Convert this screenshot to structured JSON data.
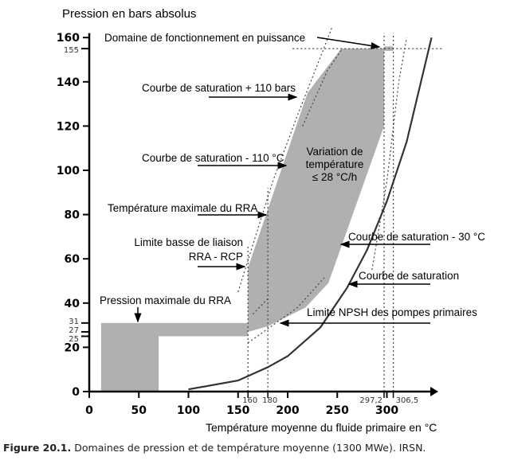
{
  "chart_data": {
    "type": "area",
    "ylabel": "Pression en bars absolus",
    "xlabel": "Température moyenne du fluide primaire en °C",
    "xlim": [
      0,
      340
    ],
    "ylim": [
      0,
      165
    ],
    "x_ticks": [
      0,
      50,
      100,
      150,
      200,
      250,
      300
    ],
    "y_ticks": [
      0,
      20,
      40,
      60,
      80,
      100,
      120,
      140,
      160
    ],
    "x_special_ticks": [
      "160",
      "180",
      "297,2",
      "306,5"
    ],
    "y_special_ticks": [
      "25",
      "27",
      "31",
      "155"
    ],
    "regions": [
      {
        "name": "Variation de température ≤ 28 °C/h",
        "points": [
          [
            160,
            27
          ],
          [
            160,
            56
          ],
          [
            220,
            135
          ],
          [
            254,
            155
          ],
          [
            297.2,
            155
          ],
          [
            297.2,
            120
          ],
          [
            241,
            49
          ],
          [
            218,
            38
          ],
          [
            180,
            29.5
          ]
        ]
      },
      {
        "name": "Pression maximale du RRA",
        "points": [
          [
            12,
            0
          ],
          [
            12,
            31
          ],
          [
            160,
            31
          ],
          [
            160,
            25
          ],
          [
            70,
            25
          ],
          [
            70,
            0
          ]
        ]
      },
      {
        "name": "Domaine de fonctionnement en puissance",
        "points": [
          [
            297.2,
            154
          ],
          [
            306.5,
            154
          ],
          [
            306.5,
            156
          ],
          [
            297.2,
            156
          ]
        ]
      }
    ],
    "saturation_curve": [
      [
        100,
        1
      ],
      [
        150,
        5
      ],
      [
        180,
        11
      ],
      [
        200,
        16
      ],
      [
        233,
        29
      ],
      [
        260,
        47
      ],
      [
        280,
        64
      ],
      [
        300,
        86
      ],
      [
        320,
        113
      ],
      [
        345,
        160
      ]
    ],
    "reference_lines": {
      "x": [
        160,
        180,
        297.2,
        306.5
      ],
      "y": [
        155
      ]
    },
    "color_fill": "#b0b0b0"
  },
  "labels": {
    "domaine": "Domaine de fonctionnement en puissance",
    "sat_plus_110": "Courbe de saturation + 110 bars",
    "sat_minus_110": "Courbe de saturation - 110 °C",
    "variation_1": "Variation de",
    "variation_2": "température",
    "variation_3": "≤ 28 °C/h",
    "temp_max_rra": "Température maximale du RRA",
    "limite_basse_1": "Limite basse de liaison",
    "limite_basse_2": "RRA - RCP",
    "pression_max_rra": "Pression maximale du RRA",
    "sat_minus_30": "Courbe de saturation - 30 °C",
    "saturation": "Courbe de saturation",
    "npsh": "Limite NPSH des pompes primaires"
  },
  "caption": {
    "bold": "Figure 20.1.",
    "text": " Domaines de pression et de température moyenne (1300 MWe). IRSN."
  }
}
